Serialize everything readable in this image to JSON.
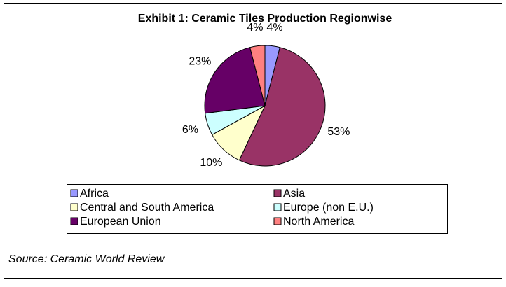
{
  "chart_data": {
    "type": "pie",
    "title": "Exhibit 1: Ceramic Tiles Production Regionwise",
    "categories": [
      "Africa",
      "Asia",
      "Central and South America",
      "Europe (non E.U.)",
      "European Union",
      "North America"
    ],
    "values": [
      4,
      53,
      10,
      6,
      23,
      4
    ],
    "value_labels": [
      "4%",
      "53%",
      "10%",
      "6%",
      "23%",
      "4%"
    ],
    "colors": [
      "#9999ff",
      "#993366",
      "#ffffcc",
      "#ccffff",
      "#660066",
      "#ff8080"
    ],
    "legend": "bottom",
    "source": "Source: Ceramic World Review"
  }
}
